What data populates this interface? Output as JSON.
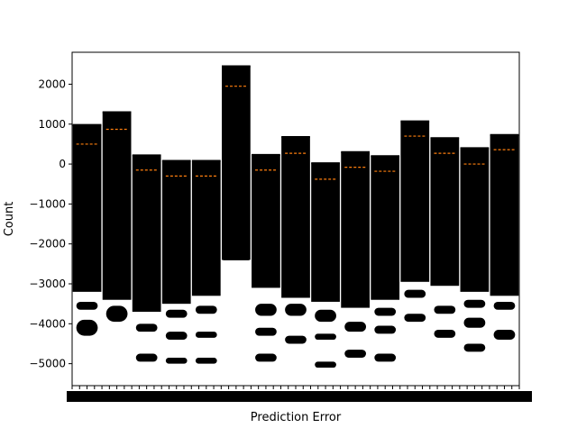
{
  "chart_data": {
    "type": "box",
    "xlabel": "Prediction Error",
    "ylabel": "Count",
    "ylim": [
      -5550,
      2800
    ],
    "yticks": [
      2000,
      1000,
      0,
      -1000,
      -2000,
      -3000,
      -4000,
      -5000
    ],
    "ytick_labels": [
      "2000",
      "1000",
      "0",
      "−1000",
      "−2000",
      "−3000",
      "−4000",
      "−5000"
    ],
    "x_tick_labels_overlapping": true,
    "grid": false,
    "box_fill": "#000000",
    "median_color": "#ff7f0e",
    "groups": [
      {
        "q3": 980,
        "median": 500,
        "q1": -3200,
        "outlier_bands": [
          [
            -3450,
            -3650
          ],
          [
            -3900,
            -4300
          ]
        ]
      },
      {
        "q3": 1300,
        "median": 870,
        "q1": -3400,
        "outlier_bands": [
          [
            -3550,
            -3950
          ]
        ]
      },
      {
        "q3": 220,
        "median": -150,
        "q1": -3700,
        "outlier_bands": [
          [
            -4000,
            -4200
          ],
          [
            -4750,
            -4950
          ]
        ]
      },
      {
        "q3": 80,
        "median": -300,
        "q1": -3500,
        "outlier_bands": [
          [
            -3650,
            -3850
          ],
          [
            -4200,
            -4400
          ],
          [
            -4850,
            -5000
          ]
        ]
      },
      {
        "q3": 80,
        "median": -300,
        "q1": -3300,
        "outlier_bands": [
          [
            -3550,
            -3750
          ],
          [
            -4200,
            -4350
          ],
          [
            -4850,
            -5000
          ]
        ]
      },
      {
        "q3": 2450,
        "median": 1950,
        "q1": -2400,
        "outlier_bands": []
      },
      {
        "q3": 230,
        "median": -150,
        "q1": -3100,
        "outlier_bands": [
          [
            -3500,
            -3800
          ],
          [
            -4100,
            -4300
          ],
          [
            -4750,
            -4950
          ]
        ]
      },
      {
        "q3": 680,
        "median": 270,
        "q1": -3350,
        "outlier_bands": [
          [
            -3500,
            -3800
          ],
          [
            -4300,
            -4500
          ]
        ]
      },
      {
        "q3": 20,
        "median": -380,
        "q1": -3450,
        "outlier_bands": [
          [
            -3650,
            -3950
          ],
          [
            -4250,
            -4400
          ],
          [
            -4950,
            -5100
          ]
        ]
      },
      {
        "q3": 300,
        "median": -80,
        "q1": -3600,
        "outlier_bands": [
          [
            -3950,
            -4200
          ],
          [
            -4650,
            -4850
          ]
        ]
      },
      {
        "q3": 200,
        "median": -180,
        "q1": -3400,
        "outlier_bands": [
          [
            -3600,
            -3800
          ],
          [
            -4050,
            -4250
          ],
          [
            -4750,
            -4950
          ]
        ]
      },
      {
        "q3": 1070,
        "median": 700,
        "q1": -2950,
        "outlier_bands": [
          [
            -3150,
            -3350
          ],
          [
            -3750,
            -3950
          ]
        ]
      },
      {
        "q3": 650,
        "median": 270,
        "q1": -3050,
        "outlier_bands": [
          [
            -3550,
            -3750
          ],
          [
            -4150,
            -4350
          ]
        ]
      },
      {
        "q3": 400,
        "median": 0,
        "q1": -3200,
        "outlier_bands": [
          [
            -3400,
            -3600
          ],
          [
            -3850,
            -4100
          ],
          [
            -4500,
            -4700
          ]
        ]
      },
      {
        "q3": 730,
        "median": 360,
        "q1": -3300,
        "outlier_bands": [
          [
            -3450,
            -3650
          ],
          [
            -4150,
            -4400
          ]
        ]
      }
    ]
  }
}
